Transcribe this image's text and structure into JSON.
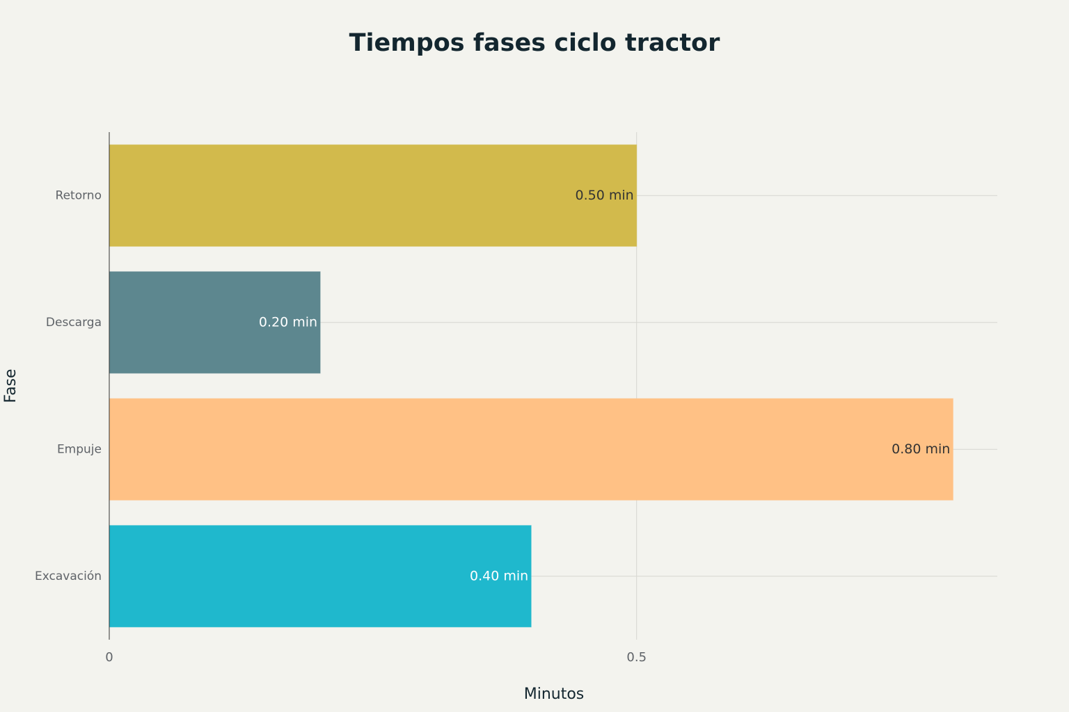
{
  "chart_data": {
    "type": "bar",
    "orientation": "horizontal",
    "title": "Tiempos fases ciclo tractor",
    "x_label": "Minutos",
    "y_label": "Fase",
    "categories": [
      "Excavación",
      "Empuje",
      "Descarga",
      "Retorno"
    ],
    "values": [
      0.4,
      0.8,
      0.2,
      0.5
    ],
    "value_labels": [
      "0.40 min",
      "0.80 min",
      "0.20 min",
      "0.50 min"
    ],
    "colors": [
      "#1FB8CD",
      "#FFC185",
      "#5D878F",
      "#D2BA4C"
    ],
    "xlim": [
      0,
      0.842
    ],
    "xticks": [
      0,
      0.5
    ],
    "grid": true
  }
}
